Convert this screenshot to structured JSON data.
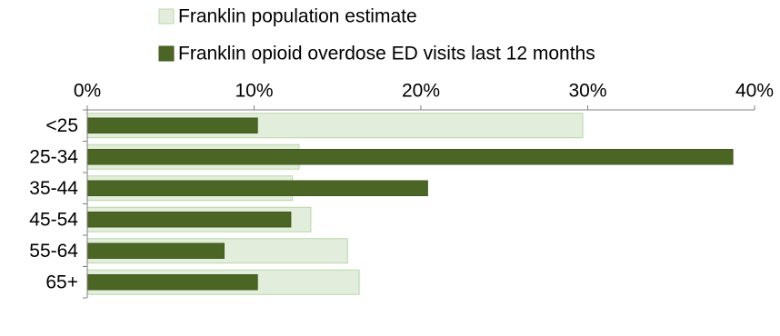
{
  "chart_data": {
    "type": "bar",
    "orientation": "horizontal",
    "overlap": true,
    "categories": [
      "<25",
      "25-34",
      "35-44",
      "45-54",
      "55-64",
      "65+"
    ],
    "series": [
      {
        "name": "Franklin population estimate",
        "values": [
          29.7,
          12.7,
          12.3,
          13.4,
          15.6,
          16.3
        ],
        "color": "#e2eedb",
        "stroke": "#b9d7a8"
      },
      {
        "name": "Franklin opioid overdose ED visits last 12 months",
        "values": [
          10.2,
          38.7,
          20.4,
          12.2,
          8.2,
          10.2
        ],
        "color": "#4b6624",
        "stroke": "#3f581d"
      }
    ],
    "xlim": [
      0,
      40
    ],
    "ticks": [
      0,
      10,
      20,
      30,
      40
    ],
    "tick_labels": [
      "0%",
      "10%",
      "20%",
      "30%",
      "40%"
    ],
    "axis_position": "top",
    "legend_position": "top",
    "grid": false,
    "title": "",
    "xlabel": "",
    "ylabel": ""
  }
}
